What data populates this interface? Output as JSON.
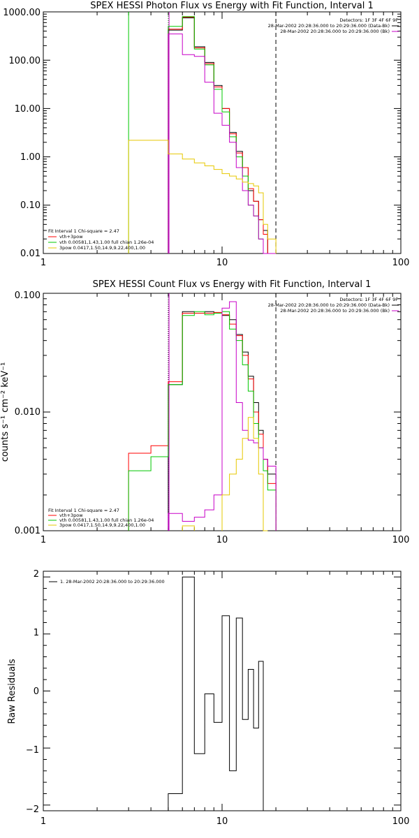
{
  "chart_data": [
    {
      "type": "line",
      "title": "SPEX HESSI Photon Flux vs Energy with Fit Function, Interval 1",
      "xlabel": "",
      "ylabel": "",
      "xscale": "log",
      "yscale": "log",
      "xlim": [
        1,
        100
      ],
      "ylim": [
        0.01,
        1000
      ],
      "xticks": [
        "1",
        "10",
        "100"
      ],
      "yticks": [
        "0.01",
        "0.10",
        "1.00",
        "10.00",
        "100.00",
        "1000.00"
      ],
      "info_lines": [
        "Detectors: 1F 3F 4F 6F 9F",
        "28-Mar-2002 20:28:36.000 to 20:29:36.000 (Data-Bk)",
        "28-Mar-2002 20:28:36.000 to 20:29:36.000 (Bk)"
      ],
      "fit_label": "Fit Interval 1   Chi-square = 2.47",
      "legend": [
        {
          "label": "vth+3pow",
          "color": "#ff0000"
        },
        {
          "label": "vth 0.00581,1.43,1.00  full chian 1.26e-04",
          "color": "#00c800"
        },
        {
          "label": "3pow 0.0417,1.50,14.9,9.22,400,1.00",
          "color": "#e6c800"
        }
      ],
      "vlines": [
        {
          "x": 3.0,
          "style": "solid",
          "color": "#00c800"
        },
        {
          "x": 5.0,
          "style": "dotted",
          "color": "#00c800"
        },
        {
          "x": 5.05,
          "style": "solid",
          "color": "#c800c8"
        },
        {
          "x": 20.0,
          "style": "dashed",
          "color": "#000000"
        }
      ],
      "edges": [
        3.0,
        5.0,
        6.0,
        7.0,
        8.0,
        9.0,
        10.0,
        11.0,
        12.0,
        13.0,
        14.0,
        15.0,
        16.0,
        17.0,
        18.0,
        20.0
      ],
      "series": [
        {
          "color": "#000000",
          "values": [
            null,
            420,
            750,
            190,
            90,
            30,
            10,
            3.2,
            1.3,
            0.6,
            0.2,
            0.12,
            0.05,
            0.03,
            0.008
          ]
        },
        {
          "color": "#ff0000",
          "values": [
            null,
            440,
            780,
            180,
            85,
            28,
            10,
            3.0,
            1.2,
            0.6,
            0.22,
            0.12,
            0.05,
            0.025,
            0.008
          ]
        },
        {
          "color": "#00c800",
          "values": [
            null,
            500,
            800,
            170,
            80,
            25,
            8.5,
            2.6,
            1.0,
            0.4,
            0.1,
            0.06,
            0.02,
            0.01,
            0.005
          ]
        },
        {
          "color": "#c800c8",
          "values": [
            null,
            350,
            130,
            120,
            35,
            8,
            4.5,
            2.0,
            0.6,
            0.2,
            0.1,
            0.06,
            0.02,
            0.01,
            0.005
          ]
        },
        {
          "color": "#e6c800",
          "values": [
            2.2,
            1.15,
            0.9,
            0.75,
            0.65,
            0.55,
            0.45,
            0.4,
            0.35,
            0.3,
            0.28,
            0.25,
            0.18,
            0.04,
            0.02
          ]
        }
      ]
    },
    {
      "type": "line",
      "title": "SPEX HESSI Count Flux vs Energy with Fit Function, Interval 1",
      "xlabel": "",
      "ylabel": "counts s⁻¹ cm⁻² keV⁻¹",
      "xscale": "log",
      "yscale": "log",
      "xlim": [
        1,
        100
      ],
      "ylim": [
        0.001,
        0.1
      ],
      "xticks": [
        "1",
        "10",
        "100"
      ],
      "yticks": [
        "0.001",
        "0.010",
        "0.100"
      ],
      "info_lines": [
        "Detectors: 1F 3F 4F 6F 9F",
        "28-Mar-2002 20:28:36.000 to 20:29:36.000 (Data-Bk)",
        "28-Mar-2002 20:28:36.000 to 20:29:36.000 (Bk)"
      ],
      "fit_label": "Fit Interval 1   Chi-square = 2.47",
      "legend": [
        {
          "label": "vth+3pow",
          "color": "#ff0000"
        },
        {
          "label": "vth 0.00581,1.43,1.00  full chian 1.26e-04",
          "color": "#00c800"
        },
        {
          "label": "3pow 0.0417,1.50,14.9,9.22,400,1.00",
          "color": "#e6c800"
        }
      ],
      "vlines": [
        {
          "x": 5.0,
          "style": "dotted",
          "color": "#000000"
        },
        {
          "x": 5.05,
          "style": "solid",
          "color": "#c800c8"
        },
        {
          "x": 20.0,
          "style": "dashed",
          "color": "#000000"
        }
      ],
      "edges": [
        3.0,
        4.0,
        5.0,
        6.0,
        7.0,
        8.0,
        9.0,
        10.0,
        11.0,
        12.0,
        13.0,
        14.0,
        15.0,
        16.0,
        17.0,
        18.0,
        20.0
      ],
      "series": [
        {
          "color": "#000000",
          "values": [
            null,
            null,
            0.017,
            0.07,
            0.068,
            0.07,
            0.068,
            0.065,
            0.06,
            0.045,
            0.032,
            0.02,
            0.012,
            0.007,
            0.004,
            0.003
          ]
        },
        {
          "color": "#ff0000",
          "values": [
            0.0045,
            0.0052,
            0.018,
            0.068,
            0.068,
            0.068,
            0.069,
            0.066,
            0.055,
            0.044,
            0.03,
            0.019,
            0.01,
            0.0065,
            0.004,
            0.0025
          ]
        },
        {
          "color": "#00c800",
          "values": [
            0.0032,
            0.0042,
            0.017,
            0.065,
            0.07,
            0.066,
            0.068,
            0.07,
            0.05,
            0.04,
            0.025,
            0.015,
            0.008,
            0.005,
            0.0032,
            0.0022
          ]
        },
        {
          "color": "#c800c8",
          "values": [
            null,
            null,
            0.0014,
            0.0012,
            0.0013,
            0.0015,
            0.002,
            0.075,
            0.085,
            0.012,
            0.007,
            0.0058,
            0.0055,
            0.005,
            0.004,
            0.0035
          ]
        },
        {
          "color": "#e6c800",
          "values": [
            null,
            null,
            null,
            0.0011,
            null,
            null,
            null,
            0.002,
            0.003,
            0.004,
            0.006,
            0.009,
            0.006,
            0.003,
            0.001,
            null
          ]
        }
      ]
    },
    {
      "type": "line",
      "title": "",
      "xlabel": "",
      "ylabel": "Raw Residuals",
      "xscale": "log",
      "yscale": "linear",
      "xlim": [
        1,
        100
      ],
      "ylim": [
        -2.1,
        2.1
      ],
      "xticks": [
        "1",
        "10",
        "100"
      ],
      "yticks": [
        "−2",
        "−1",
        "0",
        "1",
        "2"
      ],
      "legend": [
        {
          "label": "1. 28-Mar-2002 20:28:36.000 to 20:29:36.000",
          "color": "#000000"
        }
      ],
      "edges": [
        5.0,
        6.0,
        7.0,
        8.0,
        9.0,
        10.0,
        11.0,
        12.0,
        13.0,
        14.0,
        15.0,
        16.0,
        17.0,
        18.0,
        20.0
      ],
      "series": [
        {
          "color": "#000000",
          "values": [
            -1.8,
            2.0,
            -1.1,
            -0.05,
            -0.55,
            1.32,
            -1.4,
            1.28,
            -0.5,
            0.38,
            -0.65,
            0.52,
            -2.2,
            null
          ]
        }
      ]
    }
  ]
}
